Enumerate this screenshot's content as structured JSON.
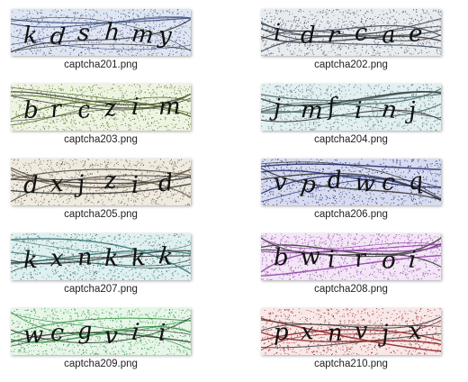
{
  "items": [
    {
      "filename": "captcha201.png",
      "text": "kdshmy",
      "color": "#3a4a7a",
      "bg": "#dfe6f2"
    },
    {
      "filename": "captcha202.png",
      "text": "idrcae",
      "color": "#3a4658",
      "bg": "#e9ecef"
    },
    {
      "filename": "captcha203.png",
      "text": "brczim",
      "color": "#4e6a26",
      "bg": "#eef4e2"
    },
    {
      "filename": "captcha204.png",
      "text": "jmfinj",
      "color": "#4e6a6a",
      "bg": "#e2f0f2"
    },
    {
      "filename": "captcha205.png",
      "text": "dxjzid",
      "color": "#5a5040",
      "bg": "#f0ebe0"
    },
    {
      "filename": "captcha206.png",
      "text": "vpdwcq",
      "color": "#202a6a",
      "bg": "#d8dcf0"
    },
    {
      "filename": "captcha207.png",
      "text": "kxnkkk",
      "color": "#2e6a6a",
      "bg": "#e0f0f0"
    },
    {
      "filename": "captcha208.png",
      "text": "bwiroi",
      "color": "#8a3aa0",
      "bg": "#f3e6f6"
    },
    {
      "filename": "captcha209.png",
      "text": "wcgvii",
      "color": "#2a8a3a",
      "bg": "#e6f6e8"
    },
    {
      "filename": "captcha210.png",
      "text": "pxnvjx",
      "color": "#8a1e1e",
      "bg": "#f8e8e8"
    }
  ]
}
